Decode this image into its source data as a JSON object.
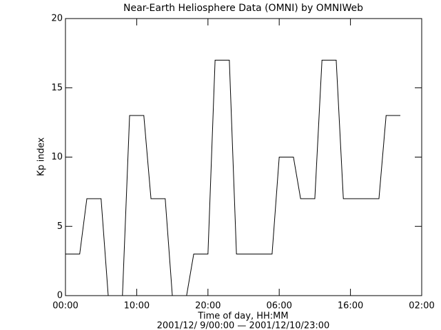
{
  "chart_data": {
    "type": "line",
    "title": "Near-Earth Heliosphere Data (OMNI) by OMNIWeb",
    "x_label": "Time of day, HH:MM",
    "subtitle": "2001/12/ 9/00:00 — 2001/12/10/23:00",
    "y_label": "Kp index",
    "x": [
      0,
      1,
      2,
      3,
      4,
      5,
      6,
      7,
      8,
      9,
      10,
      11,
      12,
      13,
      14,
      15,
      16,
      17,
      18,
      19,
      20,
      21,
      22,
      23,
      24,
      25,
      26,
      27,
      28,
      29,
      30,
      31,
      32,
      33,
      34,
      35,
      36,
      37,
      38,
      39,
      40,
      41,
      42,
      43,
      44,
      45,
      46,
      47
    ],
    "series": [
      {
        "name": "Kp index",
        "color": "#000000",
        "values": [
          3,
          3,
          3,
          7,
          7,
          7,
          0,
          0,
          0,
          13,
          13,
          13,
          7,
          7,
          7,
          0,
          0,
          0,
          3,
          3,
          3,
          17,
          17,
          17,
          3,
          3,
          3,
          3,
          3,
          3,
          10,
          10,
          10,
          7,
          7,
          7,
          17,
          17,
          17,
          7,
          7,
          7,
          7,
          7,
          7,
          13,
          13,
          13
        ]
      }
    ],
    "xlim": [
      0,
      50
    ],
    "xticks": [
      {
        "value": 0,
        "label": "00:00"
      },
      {
        "value": 10,
        "label": "10:00"
      },
      {
        "value": 20,
        "label": "20:00"
      },
      {
        "value": 30,
        "label": "06:00"
      },
      {
        "value": 40,
        "label": "16:00"
      },
      {
        "value": 50,
        "label": "02:00"
      }
    ],
    "ylim": [
      0,
      20
    ],
    "yticks": [
      0,
      5,
      10,
      15,
      20
    ]
  }
}
